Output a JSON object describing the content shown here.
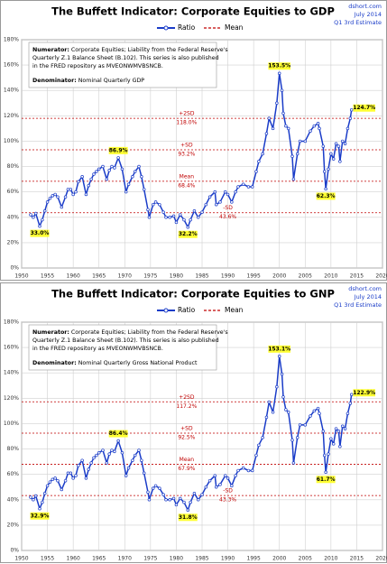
{
  "chart_data": [
    {
      "type": "line",
      "title": "The Buffett Indicator: Corporate Equities to GDP",
      "source": [
        "dshort.com",
        "July 2014",
        "Q1 3rd Estimate"
      ],
      "note": {
        "numerator_label": "Numerator:",
        "numerator_lines": [
          " Corporate Equities; Liability from the Federal Reserve's",
          "Quarterly Z.1 Balance Sheet (B.102). This series is also published",
          "in the FRED repository  as MVEONWMVBSNCB."
        ],
        "denominator_label": "Denominator:",
        "denominator": " Nominal Quarterly GDP"
      },
      "x": [
        1951.75,
        1952.25,
        1952.75,
        1953.5,
        1954,
        1954.5,
        1955,
        1955.5,
        1956,
        1956.5,
        1957,
        1957.75,
        1958.5,
        1959,
        1959.5,
        1960,
        1960.5,
        1961,
        1961.75,
        1962.5,
        1963,
        1963.5,
        1964,
        1964.5,
        1965,
        1965.75,
        1966.5,
        1967,
        1967.5,
        1968,
        1968.75,
        1969.5,
        1970.25,
        1970.75,
        1971.5,
        1972,
        1972.75,
        1973.25,
        1973.75,
        1974.5,
        1974.75,
        1975.5,
        1976,
        1976.75,
        1977.5,
        1978,
        1978.75,
        1979.5,
        1980,
        1980.75,
        1981.5,
        1982.25,
        1982.75,
        1983.5,
        1984.25,
        1985,
        1985.75,
        1986.5,
        1987.5,
        1987.75,
        1988.5,
        1989.5,
        1990,
        1990.75,
        1991.5,
        1992,
        1993,
        1994,
        1994.75,
        1995.5,
        1996,
        1996.75,
        1997.5,
        1998,
        1998.75,
        1999.5,
        2000,
        2000.5,
        2000.75,
        2001.25,
        2001.75,
        2002.5,
        2002.75,
        2003.5,
        2004,
        2005,
        2006,
        2006.75,
        2007.5,
        2007.75,
        2008.5,
        2008.75,
        2009,
        2009.5,
        2010,
        2010.5,
        2011,
        2011.5,
        2011.75,
        2012.25,
        2012.75,
        2013.25,
        2013.75,
        2014
      ],
      "series": [
        {
          "name": "Ratio",
          "color": "#1a3cc8",
          "values": [
            42,
            40,
            43,
            33.0,
            38,
            45,
            52,
            55,
            57,
            58,
            56,
            48,
            56,
            62,
            62,
            58,
            60,
            68,
            72,
            58,
            65,
            70,
            74,
            76,
            78,
            80,
            70,
            77,
            80,
            79,
            86.9,
            78,
            60,
            66,
            72,
            76,
            80,
            72,
            62,
            46,
            40,
            50,
            52,
            50,
            44,
            40,
            40,
            41,
            36,
            42,
            38,
            32.2,
            38,
            45,
            40,
            44,
            50,
            56,
            60,
            50,
            52,
            60,
            58,
            52,
            60,
            64,
            66,
            64,
            64,
            76,
            84,
            90,
            106,
            118,
            110,
            130,
            153.5,
            140,
            122,
            112,
            110,
            88,
            70,
            90,
            100,
            100,
            108,
            112,
            114,
            110,
            96,
            76,
            62.3,
            78,
            90,
            86,
            98,
            96,
            84,
            100,
            98,
            110,
            118,
            124.7
          ]
        }
      ],
      "mean_legend": {
        "name": "Mean",
        "color": "#c00000"
      },
      "reference_lines": [
        {
          "label": "+2SD",
          "value": 118.0,
          "value_label": "118.0%"
        },
        {
          "label": "+SD",
          "value": 93.2,
          "value_label": "93.2%"
        },
        {
          "label": "Mean",
          "value": 68.4,
          "value_label": "68.4%"
        },
        {
          "label": "-SD",
          "value": 43.6,
          "value_label": "43.6%"
        }
      ],
      "annotations": [
        {
          "x": 1953.5,
          "y": 33.0,
          "label": "33.0%"
        },
        {
          "x": 1968.75,
          "y": 86.9,
          "label": "86.9%"
        },
        {
          "x": 1982.25,
          "y": 32.2,
          "label": "32.2%"
        },
        {
          "x": 2000,
          "y": 153.5,
          "label": "153.5%"
        },
        {
          "x": 2009,
          "y": 62.3,
          "label": "62.3%"
        },
        {
          "x": 2014,
          "y": 124.7,
          "label": "124.7%"
        }
      ],
      "xlim": [
        1950,
        2020
      ],
      "xticks": [
        1950,
        1955,
        1960,
        1965,
        1970,
        1975,
        1980,
        1985,
        1990,
        1995,
        2000,
        2005,
        2010,
        2015,
        2020
      ],
      "ylim": [
        0,
        180
      ],
      "yticks": [
        {
          "value": 0,
          "label": "0%"
        },
        {
          "value": 20,
          "label": "20%"
        },
        {
          "value": 40,
          "label": "40%"
        },
        {
          "value": 60,
          "label": "60%"
        },
        {
          "value": 80,
          "label": "80%"
        },
        {
          "value": 100,
          "label": "100%"
        },
        {
          "value": 120,
          "label": "120%"
        },
        {
          "value": 140,
          "label": "140%"
        },
        {
          "value": 160,
          "label": "160%"
        },
        {
          "value": 180,
          "label": "180%"
        }
      ],
      "grid": true
    },
    {
      "type": "line",
      "title": "The Buffett Indicator: Corporate Equities to GNP",
      "source": [
        "dshort.com",
        "July 2014",
        "Q1 3rd Estimate"
      ],
      "note": {
        "numerator_label": "Numerator:",
        "numerator_lines": [
          " Corporate Equities; Liability from the Federal Reserve's",
          "Quarterly Z.1 Balance Sheet (B.102). This series is also published",
          "in the FRED repository  as MVEONWMVBSNCB."
        ],
        "denominator_label": "Denominator:",
        "denominator": " Nominal Quarterly Gross National Product"
      },
      "x": [
        1951.75,
        1952.25,
        1952.75,
        1953.5,
        1954,
        1954.5,
        1955,
        1955.5,
        1956,
        1956.5,
        1957,
        1957.75,
        1958.5,
        1959,
        1959.5,
        1960,
        1960.5,
        1961,
        1961.75,
        1962.5,
        1963,
        1963.5,
        1964,
        1964.5,
        1965,
        1965.75,
        1966.5,
        1967,
        1967.5,
        1968,
        1968.75,
        1969.5,
        1970.25,
        1970.75,
        1971.5,
        1972,
        1972.75,
        1973.25,
        1973.75,
        1974.5,
        1974.75,
        1975.5,
        1976,
        1976.75,
        1977.5,
        1978,
        1978.75,
        1979.5,
        1980,
        1980.75,
        1981.5,
        1982.25,
        1982.75,
        1983.5,
        1984.25,
        1985,
        1985.75,
        1986.5,
        1987.5,
        1987.75,
        1988.5,
        1989.5,
        1990,
        1990.75,
        1991.5,
        1992,
        1993,
        1994,
        1994.75,
        1995.5,
        1996,
        1996.75,
        1997.5,
        1998,
        1998.75,
        1999.5,
        2000,
        2000.5,
        2000.75,
        2001.25,
        2001.75,
        2002.5,
        2002.75,
        2003.5,
        2004,
        2005,
        2006,
        2006.75,
        2007.5,
        2007.75,
        2008.5,
        2008.75,
        2009,
        2009.5,
        2010,
        2010.5,
        2011,
        2011.5,
        2011.75,
        2012.25,
        2012.75,
        2013.25,
        2013.75,
        2014
      ],
      "series": [
        {
          "name": "Ratio",
          "color": "#1a3cc8",
          "values": [
            42,
            40,
            43,
            32.9,
            38,
            45,
            51,
            54,
            56,
            57,
            55,
            48,
            55,
            61,
            61,
            57,
            59,
            67,
            71,
            57,
            64,
            69,
            73,
            75,
            77,
            79,
            69,
            76,
            79,
            78,
            86.4,
            77,
            59,
            65,
            71,
            75,
            79,
            71,
            61,
            46,
            40,
            49,
            51,
            49,
            44,
            40,
            40,
            41,
            36,
            41,
            38,
            31.8,
            38,
            45,
            40,
            44,
            50,
            55,
            59,
            50,
            52,
            59,
            57,
            51,
            59,
            63,
            65,
            63,
            63,
            75,
            83,
            89,
            105,
            117,
            109,
            129,
            153.1,
            139,
            121,
            111,
            109,
            87,
            69,
            89,
            99,
            99,
            106,
            110,
            112,
            108,
            94,
            75,
            61.7,
            76,
            88,
            84,
            96,
            94,
            82,
            98,
            96,
            108,
            116,
            122.9
          ]
        }
      ],
      "mean_legend": {
        "name": "Mean",
        "color": "#c00000"
      },
      "reference_lines": [
        {
          "label": "+2SD",
          "value": 117.2,
          "value_label": "117.2%"
        },
        {
          "label": "+SD",
          "value": 92.5,
          "value_label": "92.5%"
        },
        {
          "label": "Mean",
          "value": 67.9,
          "value_label": "67.9%"
        },
        {
          "label": "-SD",
          "value": 43.3,
          "value_label": "43.3%"
        }
      ],
      "annotations": [
        {
          "x": 1953.5,
          "y": 32.9,
          "label": "32.9%"
        },
        {
          "x": 1968.75,
          "y": 86.4,
          "label": "86.4%"
        },
        {
          "x": 1982.25,
          "y": 31.8,
          "label": "31.8%"
        },
        {
          "x": 2000,
          "y": 153.1,
          "label": "153.1%"
        },
        {
          "x": 2009,
          "y": 61.7,
          "label": "61.7%"
        },
        {
          "x": 2014,
          "y": 122.9,
          "label": "122.9%"
        }
      ],
      "xlim": [
        1950,
        2020
      ],
      "xticks": [
        1950,
        1955,
        1960,
        1965,
        1970,
        1975,
        1980,
        1985,
        1990,
        1995,
        2000,
        2005,
        2010,
        2015,
        2020
      ],
      "ylim": [
        0,
        180
      ],
      "yticks": [
        {
          "value": 0,
          "label": "0%"
        },
        {
          "value": 20,
          "label": "20%"
        },
        {
          "value": 40,
          "label": "40%"
        },
        {
          "value": 60,
          "label": "60%"
        },
        {
          "value": 80,
          "label": "80%"
        },
        {
          "value": 100,
          "label": "100%"
        },
        {
          "value": 120,
          "label": "120%"
        },
        {
          "value": 140,
          "label": "140%"
        },
        {
          "value": 160,
          "label": "160%"
        },
        {
          "value": 180,
          "label": "180%"
        }
      ],
      "grid": true
    }
  ]
}
